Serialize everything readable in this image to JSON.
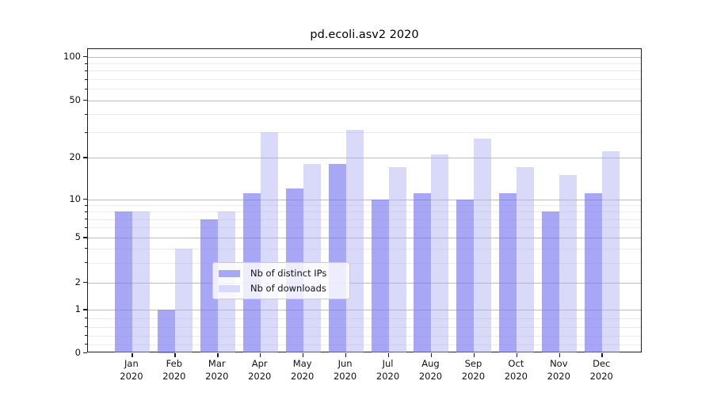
{
  "chart_data": {
    "type": "bar",
    "title": "pd.ecoli.asv2 2020",
    "categories": [
      "Jan",
      "Feb",
      "Mar",
      "Apr",
      "May",
      "Jun",
      "Jul",
      "Aug",
      "Sep",
      "Oct",
      "Nov",
      "Dec"
    ],
    "category_year": "2020",
    "series": [
      {
        "name": "Nb of distinct IPs",
        "color": "rgba(120,120,240,0.65)",
        "legend_color": "#a7a7f6",
        "values": [
          8,
          1,
          7,
          11,
          12,
          18,
          10,
          11,
          10,
          11,
          8,
          11
        ]
      },
      {
        "name": "Nb of downloads",
        "color": "rgba(170,170,245,0.45)",
        "legend_color": "#d9d9fb",
        "values": [
          8,
          4,
          8,
          30,
          18,
          31,
          17,
          21,
          27,
          17,
          15,
          22
        ]
      }
    ],
    "y_axis": {
      "scale": "symlog",
      "major_ticks": [
        0,
        1,
        2,
        5,
        10,
        20,
        50,
        100
      ],
      "minor_ticks": [
        0.2,
        0.4,
        0.6,
        0.8,
        3,
        4,
        6,
        7,
        8,
        9,
        30,
        40,
        60,
        70,
        80,
        90
      ],
      "ylim": [
        0,
        113
      ]
    },
    "x_axis": {
      "tick_label_year": "2020"
    },
    "legend": {
      "position": "bottom-center",
      "entries": [
        "Nb of distinct IPs",
        "Nb of downloads"
      ]
    },
    "grid": true
  }
}
